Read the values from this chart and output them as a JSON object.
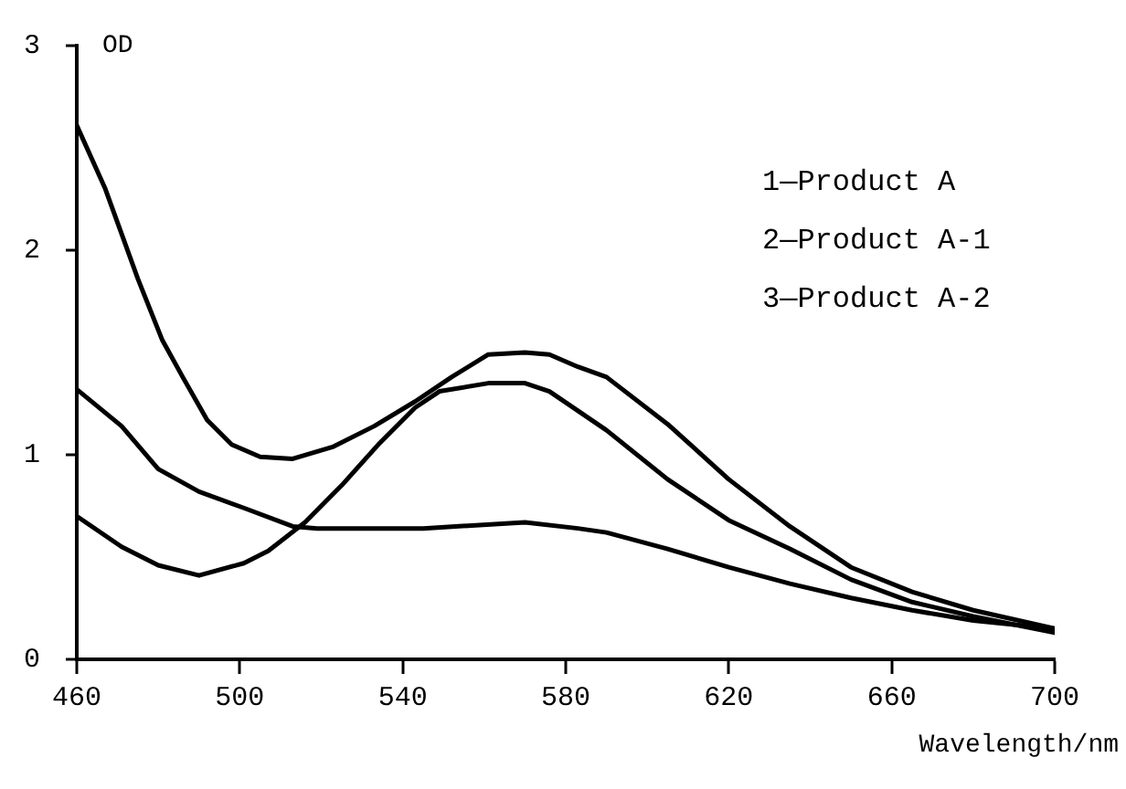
{
  "chart_data": {
    "type": "line",
    "xlabel": "Wavelength/nm",
    "ylabel": "OD",
    "annotations": [
      "1—Product A",
      "2—Product A-1",
      "3—Product A-2"
    ],
    "xlim": [
      460,
      700
    ],
    "xticks": [
      460,
      500,
      540,
      580,
      620,
      660,
      700
    ],
    "ylim": [
      0,
      3
    ],
    "yticks": [
      0,
      1,
      2,
      3
    ],
    "grid": false,
    "legend": false,
    "marker": "none",
    "line_style": "solid",
    "series": [
      {
        "color": "#000000",
        "x": [
          460,
          467,
          475,
          481,
          486,
          492,
          498,
          505,
          513,
          523,
          533,
          543,
          552,
          561,
          570,
          576,
          583,
          590,
          605,
          620,
          635,
          650,
          665,
          680,
          700
        ],
        "values": [
          2.61,
          2.3,
          1.86,
          1.56,
          1.38,
          1.17,
          1.05,
          0.99,
          0.98,
          1.04,
          1.14,
          1.26,
          1.38,
          1.49,
          1.5,
          1.49,
          1.43,
          1.38,
          1.15,
          0.88,
          0.65,
          0.45,
          0.33,
          0.24,
          0.15
        ]
      },
      {
        "color": "#000000",
        "x": [
          460,
          471,
          480,
          490,
          501,
          507,
          516,
          525,
          534,
          543,
          549,
          561,
          570,
          576,
          590,
          605,
          620,
          635,
          650,
          665,
          680,
          700
        ],
        "values": [
          0.7,
          0.55,
          0.46,
          0.41,
          0.47,
          0.53,
          0.67,
          0.85,
          1.05,
          1.23,
          1.31,
          1.35,
          1.35,
          1.31,
          1.12,
          0.88,
          0.68,
          0.54,
          0.39,
          0.28,
          0.21,
          0.13
        ]
      },
      {
        "color": "#000000",
        "x": [
          460,
          471,
          480,
          490,
          501,
          513,
          519,
          545,
          570,
          583,
          590,
          605,
          620,
          635,
          650,
          665,
          680,
          700
        ],
        "values": [
          1.32,
          1.14,
          0.93,
          0.82,
          0.74,
          0.65,
          0.64,
          0.64,
          0.67,
          0.64,
          0.62,
          0.54,
          0.45,
          0.37,
          0.3,
          0.24,
          0.19,
          0.15
        ]
      }
    ]
  }
}
